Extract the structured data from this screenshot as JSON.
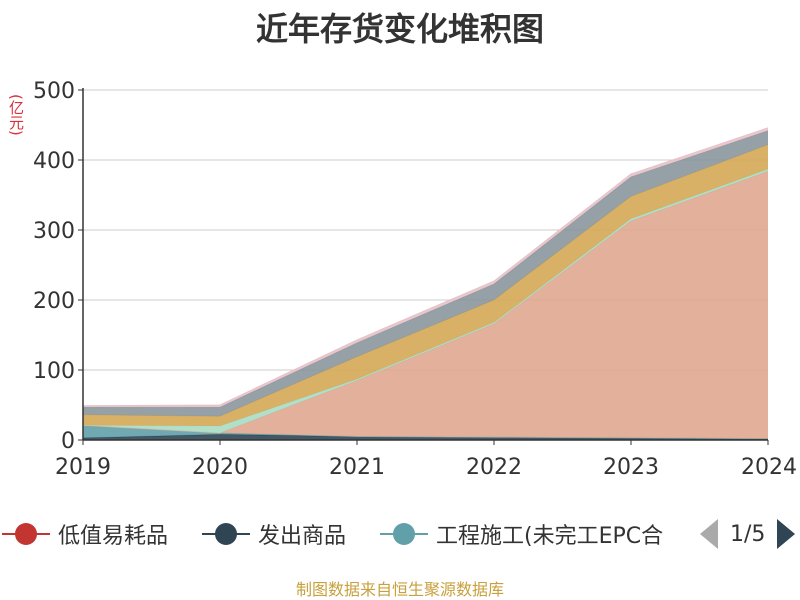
{
  "chart_data": {
    "type": "area",
    "stacked": true,
    "title": "近年存货变化堆积图",
    "ylabel": "(亿元)",
    "ylim": [
      0,
      500
    ],
    "yticks": [
      0,
      100,
      200,
      300,
      400,
      500
    ],
    "categories": [
      "2019",
      "2020",
      "2021",
      "2022",
      "2023",
      "2024"
    ],
    "grid": true,
    "legend_position": "bottom",
    "series": [
      {
        "name": "低值易耗品",
        "color": "#c23531",
        "values": [
          0,
          0,
          0,
          0,
          0,
          0
        ]
      },
      {
        "name": "发出商品",
        "color": "#2f4554",
        "values": [
          3,
          8,
          5,
          4,
          3,
          2
        ]
      },
      {
        "name": "工程施工(未完工EPC合",
        "color": "#61a0a8",
        "values": [
          18,
          2,
          0,
          0,
          0,
          0
        ]
      },
      {
        "name": "",
        "color": "#e0a790",
        "values": [
          0,
          0,
          80,
          162,
          310,
          382
        ]
      },
      {
        "name": "",
        "color": "#a8dcc4",
        "values": [
          0,
          10,
          2,
          2,
          3,
          3
        ]
      },
      {
        "name": "",
        "color": "#d4a856",
        "values": [
          15,
          14,
          32,
          32,
          32,
          35
        ]
      },
      {
        "name": "",
        "color": "#8a969d",
        "values": [
          11,
          13,
          20,
          23,
          28,
          20
        ]
      },
      {
        "name": "",
        "color": "#e6c2c8",
        "values": [
          2,
          3,
          4,
          4,
          4,
          4
        ]
      }
    ]
  },
  "legend": {
    "items": [
      {
        "label": "低值易耗品",
        "color": "#c23531"
      },
      {
        "label": "发出商品",
        "color": "#2f4554"
      },
      {
        "label": "工程施工(未完工EPC合",
        "color": "#61a0a8"
      }
    ],
    "page_text": "1/5"
  },
  "source_text": "制图数据来自恒生聚源数据库"
}
